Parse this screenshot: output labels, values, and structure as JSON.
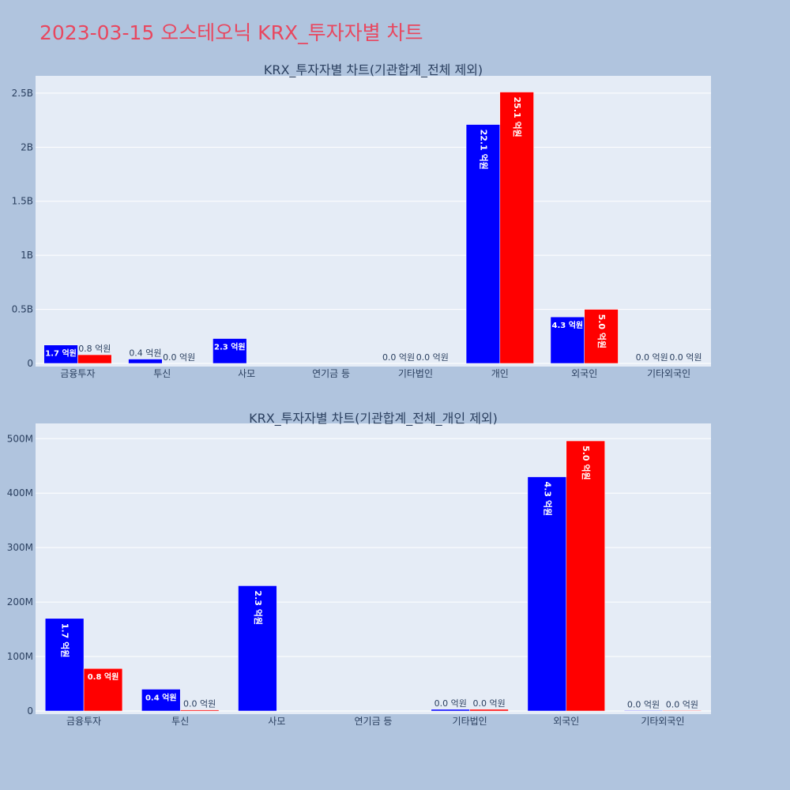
{
  "page": {
    "title": "2023-03-15 오스테오닉 KRX_투자자별 차트"
  },
  "colors": {
    "buy": "#0000ff",
    "sell": "#ff0000",
    "plot_bg": "#e5ecf6",
    "page_bg": "#b0c4de",
    "title": "#e8475f"
  },
  "chart_data": [
    {
      "type": "bar",
      "title": "KRX_투자자별 차트(기관합계_전체 제외)",
      "categories": [
        "금융투자",
        "투신",
        "사모",
        "연기금 등",
        "기타법인",
        "개인",
        "외국인",
        "기타외국인"
      ],
      "series": [
        {
          "values": [
            170000000,
            40000000,
            230000000,
            0,
            0,
            2210000000,
            430000000,
            0
          ],
          "labels": [
            "1.7 억원",
            "0.4 억원",
            "2.3 억원",
            "",
            "0.0 억원",
            "22.1 억원",
            "4.3 억원",
            "0.0 억원"
          ]
        },
        {
          "values": [
            80000000,
            0,
            null,
            0,
            0,
            2510000000,
            500000000,
            0
          ],
          "labels": [
            "0.8 억원",
            "0.0 억원",
            "",
            "",
            "0.0 억원",
            "25.1 억원",
            "5.0 억원",
            "0.0 억원"
          ]
        }
      ],
      "yticks": [
        0,
        500000000,
        1000000000,
        1500000000,
        2000000000,
        2500000000
      ],
      "ytick_labels": [
        "0",
        "0.5B",
        "1B",
        "1.5B",
        "2B",
        "2.5B"
      ],
      "ylim": [
        0,
        2660000000
      ],
      "grid": true
    },
    {
      "type": "bar",
      "title": "KRX_투자자별 차트(기관합계_전체_개인 제외)",
      "categories": [
        "금융투자",
        "투신",
        "사모",
        "연기금 등",
        "기타법인",
        "외국인",
        "기타외국인"
      ],
      "series": [
        {
          "values": [
            170000000,
            40000000,
            230000000,
            0,
            3000000,
            430000000,
            1000000
          ],
          "labels": [
            "1.7 억원",
            "0.4 억원",
            "2.3 억원",
            "",
            "0.0 억원",
            "4.3 억원",
            "0.0 억원"
          ]
        },
        {
          "values": [
            78000000,
            2000000,
            null,
            0,
            3000000,
            496000000,
            1000000
          ],
          "labels": [
            "0.8 억원",
            "0.0 억원",
            "",
            "",
            "0.0 억원",
            "5.0 억원",
            "0.0 억원"
          ]
        }
      ],
      "yticks": [
        0,
        100000000,
        200000000,
        300000000,
        400000000,
        500000000
      ],
      "ytick_labels": [
        "0",
        "100M",
        "200M",
        "300M",
        "400M",
        "500M"
      ],
      "ylim": [
        0,
        528000000
      ],
      "grid": true
    }
  ]
}
